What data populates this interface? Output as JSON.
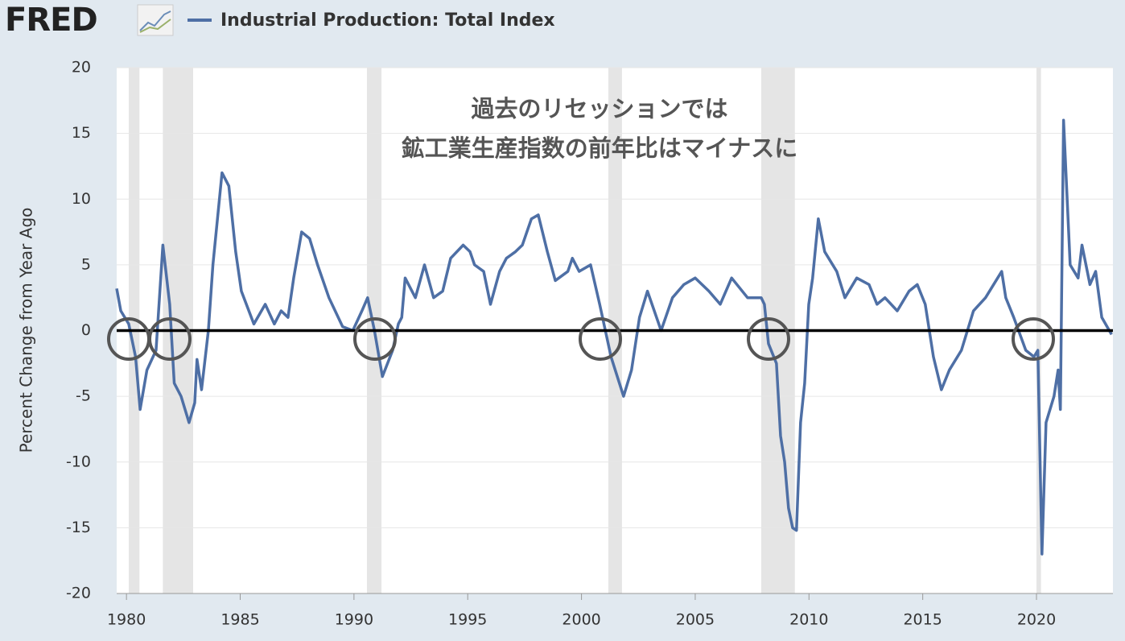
{
  "logo": "FRED",
  "chart_data": {
    "type": "line",
    "ylabel": "Percent Change from Year Ago",
    "annotations": [
      "過去のリセッションでは",
      "鉱工業生産指数の前年比はマイナスに"
    ],
    "xlim": [
      1979.57,
      2023.36
    ],
    "xticks": [
      1980,
      1985,
      1990,
      1995,
      2000,
      2005,
      2010,
      2015,
      2020
    ],
    "ylim": [
      -20,
      20
    ],
    "yticks": [
      -20,
      -15,
      -10,
      -5,
      0,
      5,
      10,
      15,
      20
    ],
    "grid": true,
    "recessions": [
      [
        1980.1,
        1980.57
      ],
      [
        1981.6,
        1982.93
      ],
      [
        1990.57,
        1991.21
      ],
      [
        2001.18,
        2001.78
      ],
      [
        2007.9,
        2009.38
      ],
      [
        2020.0,
        2020.2
      ]
    ],
    "x": [
      1979.57,
      1979.75,
      1980.1,
      1980.4,
      1980.6,
      1980.9,
      1981.3,
      1981.6,
      1981.9,
      1982.1,
      1982.4,
      1982.75,
      1983.0,
      1983.1,
      1983.3,
      1983.6,
      1983.8,
      1984.2,
      1984.5,
      1984.8,
      1985.05,
      1985.6,
      1986.1,
      1986.5,
      1986.8,
      1987.1,
      1987.35,
      1987.7,
      1988.05,
      1988.4,
      1988.9,
      1989.5,
      1989.95,
      1990.35,
      1990.6,
      1990.9,
      1991.25,
      1991.7,
      1991.95,
      1992.1,
      1992.25,
      1992.7,
      1993.1,
      1993.5,
      1993.9,
      1994.25,
      1994.8,
      1995.1,
      1995.3,
      1995.7,
      1996.0,
      1996.4,
      1996.7,
      1997.1,
      1997.4,
      1997.8,
      1998.1,
      1998.5,
      1998.85,
      1999.4,
      1999.6,
      1999.9,
      2000.4,
      2000.8,
      2001.3,
      2001.85,
      2002.2,
      2002.55,
      2002.9,
      2003.3,
      2003.5,
      2004.0,
      2004.5,
      2005.0,
      2005.6,
      2006.1,
      2006.6,
      2007.3,
      2007.9,
      2008.04,
      2008.22,
      2008.57,
      2008.75,
      2008.93,
      2009.1,
      2009.28,
      2009.45,
      2009.63,
      2009.81,
      2009.99,
      2010.16,
      2010.41,
      2010.69,
      2011.22,
      2011.58,
      2012.1,
      2012.64,
      2012.99,
      2013.34,
      2013.88,
      2014.4,
      2014.76,
      2015.11,
      2015.29,
      2015.47,
      2015.82,
      2016.17,
      2016.7,
      2017.23,
      2017.76,
      2018.47,
      2018.65,
      2019.0,
      2019.53,
      2019.89,
      2020.06,
      2020.24,
      2020.42,
      2020.77,
      2020.95,
      2021.05,
      2021.19,
      2021.48,
      2021.83,
      2022.0,
      2022.35,
      2022.6,
      2022.87,
      2023.3
    ],
    "series": [
      {
        "name": "Industrial Production: Total Index",
        "color": "#4e6fa5",
        "values": [
          3.2,
          1.5,
          0.5,
          -2,
          -6,
          -3,
          -1.5,
          6.5,
          2,
          -4,
          -5,
          -7,
          -5.5,
          -2.2,
          -4.5,
          0,
          5,
          12,
          11,
          6,
          3,
          0.5,
          2,
          0.5,
          1.5,
          1,
          4,
          7.5,
          7,
          5,
          2.5,
          0.3,
          0,
          1.5,
          2.5,
          0,
          -3.5,
          -1.5,
          0.5,
          1,
          4,
          2.5,
          5,
          2.5,
          3,
          5.5,
          6.5,
          6,
          5,
          4.5,
          2,
          4.5,
          5.5,
          6,
          6.5,
          8.5,
          8.8,
          6,
          3.8,
          4.5,
          5.5,
          4.5,
          5,
          2,
          -2,
          -5,
          -3,
          1,
          3,
          1,
          0,
          2.5,
          3.5,
          4,
          3,
          2,
          4,
          2.5,
          2.5,
          2,
          -1,
          -2.5,
          -8,
          -10,
          -13.5,
          -15,
          -15.2,
          -7,
          -4,
          2,
          4,
          8.5,
          6,
          4.5,
          2.5,
          4,
          3.5,
          2,
          2.5,
          1.5,
          3,
          3.5,
          2,
          0,
          -2,
          -4.5,
          -3,
          -1.5,
          1.5,
          2.5,
          4.5,
          2.5,
          1,
          -1.5,
          -2,
          -1.5,
          -17,
          -7,
          -5,
          -3,
          -6,
          16,
          5,
          4,
          6.5,
          3.5,
          4.5,
          1,
          -0.3
        ]
      }
    ]
  }
}
